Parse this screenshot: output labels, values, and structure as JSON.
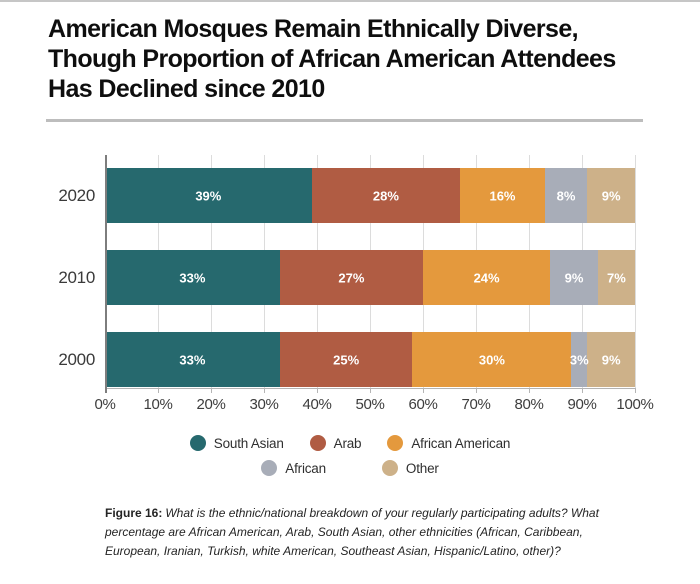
{
  "title": {
    "lines": [
      "American Mosques Remain Ethnically Diverse,",
      "Though Proportion of African American Attendees",
      "Has Declined since 2010"
    ]
  },
  "chart_data": {
    "type": "bar",
    "orientation": "horizontal",
    "stacked": true,
    "title": "American Mosques Remain Ethnically Diverse, Though Proportion of African American Attendees Has Declined since 2010",
    "categories": [
      "2020",
      "2010",
      "2000"
    ],
    "series": [
      {
        "name": "South Asian",
        "color": "#26696e",
        "values": [
          39,
          33,
          33
        ]
      },
      {
        "name": "Arab",
        "color": "#b05c43",
        "values": [
          28,
          27,
          25
        ]
      },
      {
        "name": "African American",
        "color": "#e4993d",
        "values": [
          16,
          24,
          30
        ]
      },
      {
        "name": "African",
        "color": "#a8adb8",
        "values": [
          8,
          9,
          3
        ]
      },
      {
        "name": "Other",
        "color": "#cdb189",
        "values": [
          9,
          7,
          9
        ]
      }
    ],
    "value_suffix": "%",
    "xlim": [
      0,
      100
    ],
    "x_ticks": [
      "0%",
      "10%",
      "20%",
      "30%",
      "40%",
      "50%",
      "60%",
      "70%",
      "80%",
      "90%",
      "100%"
    ],
    "grid": true,
    "legend_position": "bottom",
    "legend_rows": [
      [
        "South Asian",
        "Arab",
        "African American"
      ],
      [
        "African",
        "Other"
      ]
    ]
  },
  "caption": {
    "prefix": "Figure 16:",
    "lines": [
      "What is the ethnic/national breakdown of your regularly participating adults? What",
      "percentage are African American, Arab, South Asian, other ethnicities (African, Caribbean,",
      "European, Iranian, Turkish, white American, Southeast Asian, Hispanic/Latino, other)?"
    ],
    "full_text": "What is the ethnic/national breakdown of your regularly participating adults? What percentage are African American, Arab, South Asian, other ethnicities (African, Caribbean, European, Iranian, Turkish, white American, Southeast Asian, Hispanic/Latino, other)?"
  }
}
